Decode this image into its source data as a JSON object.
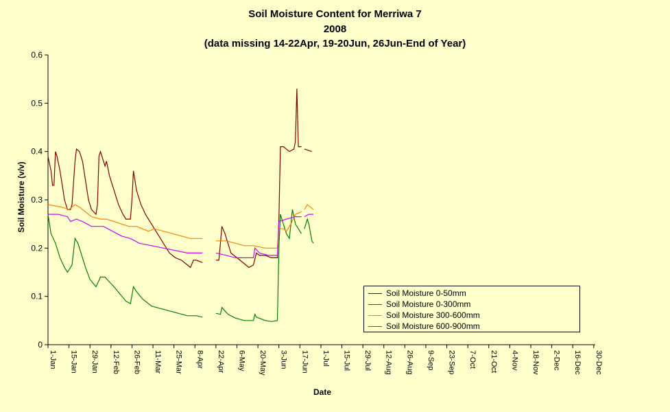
{
  "chart_data": {
    "type": "line",
    "title": "Soil Moisture Content for Merriwa 7",
    "subtitle": "2008",
    "note": "(data missing 14-22Apr, 19-20Jun, 26Jun-End of Year)",
    "xlabel": "Date",
    "ylabel": "Soil Moisture (v/v)",
    "ylim": [
      0,
      0.6
    ],
    "yticks": [
      "0",
      "0.1",
      "0.2",
      "0.3",
      "0.4",
      "0.5",
      "0.6"
    ],
    "xticks": [
      "1-Jan",
      "15-Jan",
      "29-Jan",
      "12-Feb",
      "26-Feb",
      "11-Mar",
      "25-Mar",
      "8-Apr",
      "22-Apr",
      "6-May",
      "20-May",
      "3-Jun",
      "17-Jun",
      "1-Jul",
      "15-Jul",
      "29-Jul",
      "12-Aug",
      "26-Aug",
      "9-Sep",
      "23-Sep",
      "7-Oct",
      "21-Oct",
      "4-Nov",
      "18-Nov",
      "2-Dec",
      "16-Dec",
      "30-Dec"
    ],
    "xlim_day": [
      1,
      366
    ],
    "legend_position": "bottom-right",
    "series": [
      {
        "name": "Soil Moisture 0-50mm",
        "color": "#800000",
        "segments": [
          [
            [
              1,
              0.39
            ],
            [
              3,
              0.36
            ],
            [
              4,
              0.33
            ],
            [
              5,
              0.33
            ],
            [
              6,
              0.4
            ],
            [
              7,
              0.39
            ],
            [
              9,
              0.36
            ],
            [
              11,
              0.32
            ],
            [
              12,
              0.3
            ],
            [
              13,
              0.29
            ],
            [
              14,
              0.28
            ],
            [
              16,
              0.28
            ],
            [
              17,
              0.29
            ],
            [
              19,
              0.38
            ],
            [
              20,
              0.405
            ],
            [
              22,
              0.4
            ],
            [
              24,
              0.38
            ],
            [
              26,
              0.34
            ],
            [
              28,
              0.3
            ],
            [
              30,
              0.28
            ],
            [
              33,
              0.27
            ],
            [
              34,
              0.29
            ],
            [
              35,
              0.39
            ],
            [
              36,
              0.4
            ],
            [
              38,
              0.38
            ],
            [
              39,
              0.37
            ],
            [
              40,
              0.38
            ],
            [
              42,
              0.35
            ],
            [
              45,
              0.32
            ],
            [
              48,
              0.29
            ],
            [
              51,
              0.27
            ],
            [
              53,
              0.26
            ],
            [
              56,
              0.26
            ],
            [
              57,
              0.3
            ],
            [
              58,
              0.36
            ],
            [
              60,
              0.32
            ],
            [
              63,
              0.29
            ],
            [
              66,
              0.27
            ],
            [
              70,
              0.25
            ],
            [
              74,
              0.23
            ],
            [
              78,
              0.21
            ],
            [
              82,
              0.19
            ],
            [
              86,
              0.18
            ],
            [
              90,
              0.175
            ],
            [
              94,
              0.165
            ],
            [
              96,
              0.16
            ],
            [
              98,
              0.175
            ],
            [
              100,
              0.175
            ],
            [
              104,
              0.17
            ]
          ],
          [
            [
              113,
              0.175
            ],
            [
              115,
              0.175
            ],
            [
              117,
              0.245
            ],
            [
              119,
              0.23
            ],
            [
              121,
              0.21
            ],
            [
              123,
              0.19
            ],
            [
              127,
              0.18
            ],
            [
              131,
              0.17
            ],
            [
              135,
              0.16
            ],
            [
              138,
              0.165
            ],
            [
              140,
              0.19
            ],
            [
              142,
              0.185
            ],
            [
              146,
              0.185
            ],
            [
              150,
              0.18
            ],
            [
              154,
              0.18
            ],
            [
              155,
              0.26
            ],
            [
              156,
              0.41
            ],
            [
              158,
              0.41
            ],
            [
              162,
              0.4
            ],
            [
              165,
              0.405
            ],
            [
              166,
              0.42
            ],
            [
              167,
              0.53
            ],
            [
              168,
              0.41
            ],
            [
              170,
              0.41
            ]
          ],
          [
            [
              172,
              0.405
            ],
            [
              177,
              0.4
            ]
          ]
        ]
      },
      {
        "name": "Soil Moisture 0-300mm",
        "color": "#008000",
        "segments": [
          [
            [
              1,
              0.27
            ],
            [
              3,
              0.23
            ],
            [
              6,
              0.21
            ],
            [
              9,
              0.18
            ],
            [
              12,
              0.16
            ],
            [
              14,
              0.15
            ],
            [
              17,
              0.165
            ],
            [
              19,
              0.22
            ],
            [
              21,
              0.21
            ],
            [
              23,
              0.19
            ],
            [
              26,
              0.16
            ],
            [
              29,
              0.135
            ],
            [
              33,
              0.12
            ],
            [
              36,
              0.14
            ],
            [
              39,
              0.14
            ],
            [
              42,
              0.13
            ],
            [
              45,
              0.12
            ],
            [
              49,
              0.105
            ],
            [
              53,
              0.09
            ],
            [
              56,
              0.085
            ],
            [
              58,
              0.12
            ],
            [
              60,
              0.11
            ],
            [
              64,
              0.095
            ],
            [
              70,
              0.08
            ],
            [
              76,
              0.075
            ],
            [
              82,
              0.07
            ],
            [
              88,
              0.065
            ],
            [
              94,
              0.06
            ],
            [
              100,
              0.06
            ],
            [
              104,
              0.057
            ]
          ],
          [
            [
              113,
              0.065
            ],
            [
              116,
              0.063
            ],
            [
              117,
              0.077
            ],
            [
              119,
              0.07
            ],
            [
              121,
              0.063
            ],
            [
              126,
              0.055
            ],
            [
              132,
              0.05
            ],
            [
              138,
              0.05
            ],
            [
              139,
              0.063
            ],
            [
              140,
              0.057
            ],
            [
              146,
              0.05
            ],
            [
              150,
              0.048
            ],
            [
              154,
              0.05
            ],
            [
              155,
              0.2
            ],
            [
              156,
              0.27
            ],
            [
              158,
              0.25
            ],
            [
              160,
              0.23
            ],
            [
              162,
              0.22
            ],
            [
              164,
              0.28
            ],
            [
              166,
              0.25
            ],
            [
              168,
              0.24
            ],
            [
              170,
              0.23
            ]
          ],
          [
            [
              172,
              0.24
            ],
            [
              174,
              0.26
            ],
            [
              175,
              0.25
            ],
            [
              177,
              0.215
            ],
            [
              178,
              0.21
            ]
          ]
        ]
      },
      {
        "name": "Soil Moisture 300-600mm",
        "color": "#ff8000",
        "segments": [
          [
            [
              1,
              0.29
            ],
            [
              10,
              0.285
            ],
            [
              15,
              0.28
            ],
            [
              19,
              0.29
            ],
            [
              22,
              0.285
            ],
            [
              26,
              0.275
            ],
            [
              30,
              0.265
            ],
            [
              36,
              0.26
            ],
            [
              40,
              0.26
            ],
            [
              45,
              0.255
            ],
            [
              50,
              0.25
            ],
            [
              55,
              0.245
            ],
            [
              60,
              0.245
            ],
            [
              64,
              0.24
            ],
            [
              68,
              0.235
            ],
            [
              72,
              0.24
            ],
            [
              78,
              0.235
            ],
            [
              84,
              0.23
            ],
            [
              90,
              0.225
            ],
            [
              96,
              0.22
            ],
            [
              104,
              0.22
            ]
          ],
          [
            [
              113,
              0.215
            ],
            [
              120,
              0.215
            ],
            [
              126,
              0.21
            ],
            [
              132,
              0.205
            ],
            [
              138,
              0.205
            ],
            [
              146,
              0.2
            ],
            [
              154,
              0.2
            ],
            [
              155,
              0.24
            ],
            [
              156,
              0.24
            ],
            [
              158,
              0.24
            ],
            [
              160,
              0.235
            ],
            [
              163,
              0.25
            ],
            [
              166,
              0.27
            ],
            [
              170,
              0.275
            ]
          ],
          [
            [
              172,
              0.28
            ],
            [
              174,
              0.29
            ],
            [
              176,
              0.285
            ],
            [
              178,
              0.28
            ]
          ]
        ]
      },
      {
        "name": "Soil Moisture 600-900mm",
        "color": "#cc00ff",
        "segments": [
          [
            [
              1,
              0.27
            ],
            [
              8,
              0.27
            ],
            [
              14,
              0.265
            ],
            [
              16,
              0.255
            ],
            [
              20,
              0.26
            ],
            [
              24,
              0.255
            ],
            [
              30,
              0.245
            ],
            [
              38,
              0.245
            ],
            [
              44,
              0.235
            ],
            [
              50,
              0.225
            ],
            [
              56,
              0.22
            ],
            [
              62,
              0.21
            ],
            [
              70,
              0.205
            ],
            [
              78,
              0.2
            ],
            [
              86,
              0.195
            ],
            [
              94,
              0.19
            ],
            [
              104,
              0.19
            ]
          ],
          [
            [
              113,
              0.19
            ],
            [
              120,
              0.185
            ],
            [
              126,
              0.18
            ],
            [
              132,
              0.18
            ],
            [
              138,
              0.18
            ],
            [
              139,
              0.2
            ],
            [
              142,
              0.19
            ],
            [
              148,
              0.185
            ],
            [
              154,
              0.185
            ],
            [
              155,
              0.255
            ],
            [
              160,
              0.26
            ],
            [
              166,
              0.265
            ],
            [
              170,
              0.265
            ]
          ],
          [
            [
              172,
              0.265
            ],
            [
              175,
              0.27
            ],
            [
              178,
              0.27
            ]
          ]
        ]
      }
    ]
  }
}
